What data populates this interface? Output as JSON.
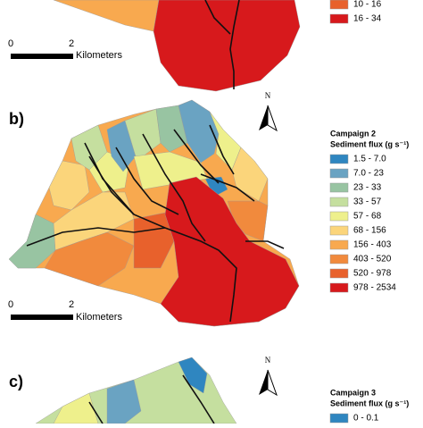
{
  "panels": [
    {
      "legend": [
        {
          "label": "10 - 16",
          "color": "#e8612c"
        },
        {
          "label": "16 - 34",
          "color": "#d7191c"
        }
      ],
      "scale": {
        "start": "0",
        "end": "2",
        "unit": "Kilometers"
      }
    },
    {
      "label": "b)",
      "north": "N",
      "legend_title": "Campaign 2",
      "legend_subtitle": "Sediment flux (g s⁻¹)",
      "legend": [
        {
          "label": "1.5 - 7.0",
          "color": "#2f86c0"
        },
        {
          "label": "7.0 - 23",
          "color": "#6aa3c2"
        },
        {
          "label": "23 - 33",
          "color": "#98c4a2"
        },
        {
          "label": "33 - 57",
          "color": "#c5df9f"
        },
        {
          "label": "57 - 68",
          "color": "#eef08c"
        },
        {
          "label": "68 - 156",
          "color": "#fbd57b"
        },
        {
          "label": "156 - 403",
          "color": "#f8a94f"
        },
        {
          "label": "403 - 520",
          "color": "#f18a3d"
        },
        {
          "label": "520 - 978",
          "color": "#e8612c"
        },
        {
          "label": "978 - 2534",
          "color": "#d7191c"
        }
      ],
      "scale": {
        "start": "0",
        "end": "2",
        "unit": "Kilometers"
      }
    },
    {
      "label": "c)",
      "north": "N",
      "legend_title": "Campaign 3",
      "legend_subtitle": "Sediment flux (g s⁻¹)",
      "legend": [
        {
          "label": "0 - 0.1",
          "color": "#2f86c0"
        }
      ]
    }
  ]
}
